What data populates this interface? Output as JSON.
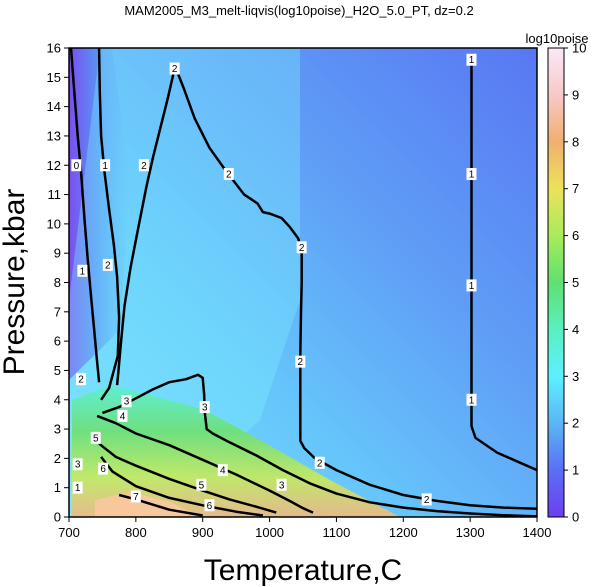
{
  "chart_data": {
    "type": "heatmap",
    "title": "MAM2005_M3_melt-liqvis(log10poise)_H2O_5.0_PT, dz=0.2",
    "xlabel": "Temperature,C",
    "ylabel": "Pressure,kbar",
    "xlim": [
      700,
      1400
    ],
    "ylim": [
      0,
      16
    ],
    "x_ticks": [
      700,
      800,
      900,
      1000,
      1100,
      1200,
      1300,
      1400
    ],
    "y_ticks": [
      0,
      1,
      2,
      3,
      4,
      5,
      6,
      7,
      8,
      9,
      10,
      11,
      12,
      13,
      14,
      15,
      16
    ],
    "colorbar": {
      "title": "log10poise",
      "range": [
        0,
        10
      ],
      "ticks": [
        0,
        1,
        2,
        3,
        4,
        5,
        6,
        7,
        8,
        9,
        10
      ],
      "stops": [
        {
          "v": 0,
          "color": "#6c3ff0"
        },
        {
          "v": 1,
          "color": "#5a6ff5"
        },
        {
          "v": 2,
          "color": "#5bb6f5"
        },
        {
          "v": 3,
          "color": "#5cf0ff"
        },
        {
          "v": 4,
          "color": "#5bf0c0"
        },
        {
          "v": 5,
          "color": "#60e070"
        },
        {
          "v": 6,
          "color": "#a8ec5a"
        },
        {
          "v": 7,
          "color": "#ece25a"
        },
        {
          "v": 8,
          "color": "#f0b070"
        },
        {
          "v": 9,
          "color": "#f8c8c8"
        },
        {
          "v": 10,
          "color": "#fce8f8"
        }
      ]
    },
    "contour_interval": 0.2,
    "contours": [
      {
        "level": 0,
        "points": [
          [
            703,
            16
          ],
          [
            708,
            14.5
          ],
          [
            713,
            13
          ],
          [
            718,
            11.8
          ],
          [
            723,
            10.2
          ],
          [
            728,
            8.8
          ],
          [
            733,
            7.5
          ],
          [
            738,
            6.3
          ],
          [
            742,
            5.3
          ],
          [
            745,
            4.6
          ]
        ]
      },
      {
        "level": 1,
        "points": [
          [
            745,
            16
          ],
          [
            746,
            14.5
          ],
          [
            748,
            13
          ],
          [
            753,
            11.8
          ],
          [
            760,
            10.5
          ],
          [
            767,
            9.3
          ],
          [
            772,
            8.2
          ],
          [
            775,
            6.8
          ],
          [
            773,
            5.5
          ],
          [
            760,
            4.4
          ],
          [
            748,
            4.0
          ]
        ]
      },
      {
        "level": 1,
        "points": [
          [
            1302,
            15.6
          ],
          [
            1302,
            13
          ],
          [
            1302,
            10
          ],
          [
            1302,
            7
          ],
          [
            1302,
            5
          ],
          [
            1302,
            3.1
          ],
          [
            1308,
            2.7
          ],
          [
            1340,
            2.2
          ],
          [
            1370,
            1.9
          ],
          [
            1400,
            1.6
          ]
        ]
      },
      {
        "level": 2,
        "points": [
          [
            858,
            15.3
          ],
          [
            848,
            14.3
          ],
          [
            838,
            13.4
          ],
          [
            826,
            12.3
          ],
          [
            816,
            11.3
          ],
          [
            803,
            9.8
          ],
          [
            792,
            8.5
          ],
          [
            783,
            7.2
          ],
          [
            778,
            6.0
          ],
          [
            774,
            5.0
          ],
          [
            772,
            4.5
          ]
        ]
      },
      {
        "level": 2,
        "points": [
          [
            860,
            15.3
          ],
          [
            872,
            14.6
          ],
          [
            888,
            13.6
          ],
          [
            910,
            12.6
          ],
          [
            935,
            11.8
          ],
          [
            962,
            11.0
          ],
          [
            982,
            10.7
          ],
          [
            990,
            10.4
          ],
          [
            1000,
            10.35
          ],
          [
            1018,
            10.2
          ],
          [
            1030,
            9.9
          ],
          [
            1043,
            9.5
          ],
          [
            1048,
            9.0
          ],
          [
            1048,
            8.0
          ],
          [
            1047,
            7.0
          ],
          [
            1046,
            5.5
          ],
          [
            1046,
            4.0
          ],
          [
            1046,
            2.6
          ],
          [
            1052,
            2.35
          ],
          [
            1068,
            2.0
          ],
          [
            1100,
            1.6
          ],
          [
            1150,
            1.1
          ],
          [
            1200,
            0.75
          ],
          [
            1250,
            0.55
          ],
          [
            1300,
            0.4
          ],
          [
            1350,
            0.32
          ],
          [
            1400,
            0.28
          ]
        ]
      },
      {
        "level": 3,
        "points": [
          [
            750,
            3.55
          ],
          [
            775,
            3.75
          ],
          [
            800,
            4.05
          ],
          [
            825,
            4.35
          ],
          [
            850,
            4.6
          ],
          [
            875,
            4.7
          ],
          [
            893,
            4.85
          ],
          [
            900,
            4.75
          ],
          [
            902,
            4.2
          ],
          [
            903,
            3.6
          ],
          [
            906,
            3.0
          ],
          [
            915,
            2.85
          ],
          [
            940,
            2.55
          ],
          [
            980,
            2.1
          ],
          [
            1020,
            1.6
          ],
          [
            1060,
            1.15
          ],
          [
            1100,
            0.8
          ],
          [
            1150,
            0.5
          ],
          [
            1200,
            0.32
          ],
          [
            1250,
            0.2
          ],
          [
            1300,
            0.12
          ],
          [
            1350,
            0.06
          ],
          [
            1400,
            0.02
          ]
        ]
      },
      {
        "level": 4,
        "points": [
          [
            742,
            3.45
          ],
          [
            770,
            3.2
          ],
          [
            800,
            2.85
          ],
          [
            850,
            2.45
          ],
          [
            900,
            1.95
          ],
          [
            950,
            1.45
          ],
          [
            1000,
            0.9
          ],
          [
            1030,
            0.55
          ],
          [
            1050,
            0.3
          ],
          [
            1065,
            0.15
          ]
        ]
      },
      {
        "level": 5,
        "points": [
          [
            745,
            2.5
          ],
          [
            770,
            2.05
          ],
          [
            800,
            1.75
          ],
          [
            850,
            1.3
          ],
          [
            900,
            0.9
          ],
          [
            940,
            0.6
          ],
          [
            980,
            0.35
          ],
          [
            1010,
            0.15
          ]
        ]
      },
      {
        "level": 6,
        "points": [
          [
            748,
            2.05
          ],
          [
            765,
            1.55
          ],
          [
            800,
            1.05
          ],
          [
            850,
            0.65
          ],
          [
            900,
            0.4
          ],
          [
            950,
            0.18
          ],
          [
            990,
            0.05
          ]
        ]
      },
      {
        "level": 7,
        "points": [
          [
            775,
            0.75
          ],
          [
            800,
            0.6
          ],
          [
            850,
            0.25
          ],
          [
            900,
            0.05
          ]
        ]
      }
    ],
    "labels": [
      {
        "text": "0",
        "x": 711,
        "y": 12.0
      },
      {
        "text": "1",
        "x": 754,
        "y": 12.0
      },
      {
        "text": "1",
        "x": 720,
        "y": 8.4
      },
      {
        "text": "1",
        "x": 1302,
        "y": 15.6
      },
      {
        "text": "1",
        "x": 1302,
        "y": 11.7
      },
      {
        "text": "1",
        "x": 1302,
        "y": 7.9
      },
      {
        "text": "1",
        "x": 1302,
        "y": 4.0
      },
      {
        "text": "2",
        "x": 858,
        "y": 15.3
      },
      {
        "text": "2",
        "x": 812,
        "y": 12.0
      },
      {
        "text": "2",
        "x": 758,
        "y": 8.6
      },
      {
        "text": "2",
        "x": 939,
        "y": 11.7
      },
      {
        "text": "2",
        "x": 1048,
        "y": 9.2
      },
      {
        "text": "2",
        "x": 1046,
        "y": 5.3
      },
      {
        "text": "2",
        "x": 1075,
        "y": 1.85
      },
      {
        "text": "2",
        "x": 1235,
        "y": 0.6
      },
      {
        "text": "2",
        "x": 718,
        "y": 4.7
      },
      {
        "text": "3",
        "x": 786,
        "y": 3.95
      },
      {
        "text": "3",
        "x": 903,
        "y": 3.75
      },
      {
        "text": "3",
        "x": 1018,
        "y": 1.1
      },
      {
        "text": "3",
        "x": 713,
        "y": 1.8
      },
      {
        "text": "4",
        "x": 780,
        "y": 3.45
      },
      {
        "text": "4",
        "x": 930,
        "y": 1.6
      },
      {
        "text": "5",
        "x": 740,
        "y": 2.7
      },
      {
        "text": "5",
        "x": 898,
        "y": 1.1
      },
      {
        "text": "6",
        "x": 751,
        "y": 1.65
      },
      {
        "text": "6",
        "x": 910,
        "y": 0.4
      },
      {
        "text": "7",
        "x": 800,
        "y": 0.7
      },
      {
        "text": "1",
        "x": 713,
        "y": 1.0
      }
    ]
  }
}
